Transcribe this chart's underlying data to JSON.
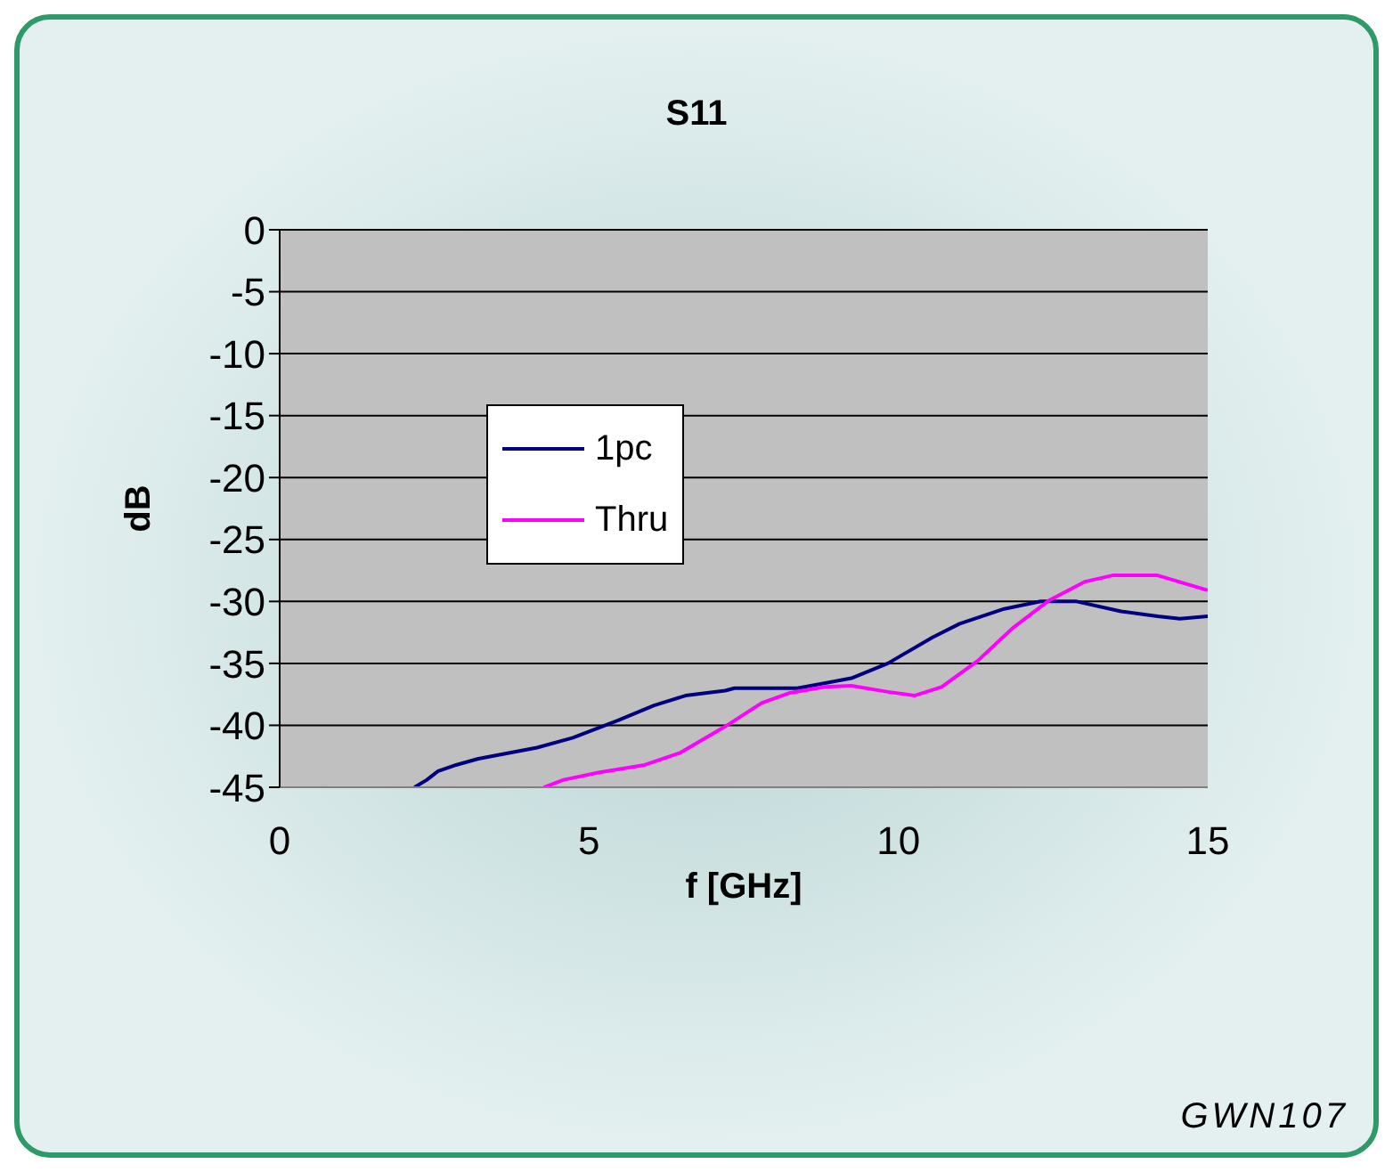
{
  "chart_data": {
    "type": "line",
    "title": "S11",
    "xlabel": "f [GHz]",
    "ylabel": "dB",
    "annotations": [
      "GWN107"
    ],
    "xlim": [
      0,
      15
    ],
    "xticks": [
      0,
      5,
      10,
      15
    ],
    "ylim": [
      -45,
      0
    ],
    "yticks": [
      -45,
      -40,
      -35,
      -30,
      -25,
      -20,
      -15,
      -10,
      -5,
      0
    ],
    "grid": "y",
    "legend": "top left",
    "marker": "none",
    "line_style": "solid",
    "series": [
      {
        "name": "1pc",
        "color": "#000080",
        "x": [
          2.18,
          2.38,
          2.56,
          2.85,
          3.21,
          4.16,
          4.74,
          5.47,
          6.05,
          6.56,
          7.2,
          7.35,
          8.37,
          9.24,
          9.83,
          10.55,
          10.99,
          11.71,
          12.3,
          12.88,
          13.6,
          14.19,
          14.55,
          15
        ],
        "values": [
          -45,
          -44.4,
          -43.7,
          -43.2,
          -42.7,
          -41.8,
          -41,
          -39.6,
          -38.4,
          -37.6,
          -37.2,
          -37,
          -37,
          -36.2,
          -35,
          -32.9,
          -31.8,
          -30.6,
          -30,
          -30,
          -30.8,
          -31.2,
          -31.4,
          -31.2
        ]
      },
      {
        "name": "Thru",
        "color": "#ff00ff",
        "x": [
          4.27,
          4.59,
          5.17,
          5.9,
          6.48,
          7.2,
          7.79,
          8.23,
          8.81,
          9.24,
          9.83,
          10.26,
          10.7,
          11.28,
          11.86,
          12.44,
          13.02,
          13.46,
          14.19,
          15
        ],
        "values": [
          -45,
          -44.4,
          -43.8,
          -43.2,
          -42.2,
          -40.1,
          -38.2,
          -37.4,
          -36.9,
          -36.8,
          -37.3,
          -37.6,
          -36.9,
          -34.8,
          -32.1,
          -29.9,
          -28.4,
          -27.9,
          -27.9,
          -29.1
        ]
      }
    ]
  }
}
